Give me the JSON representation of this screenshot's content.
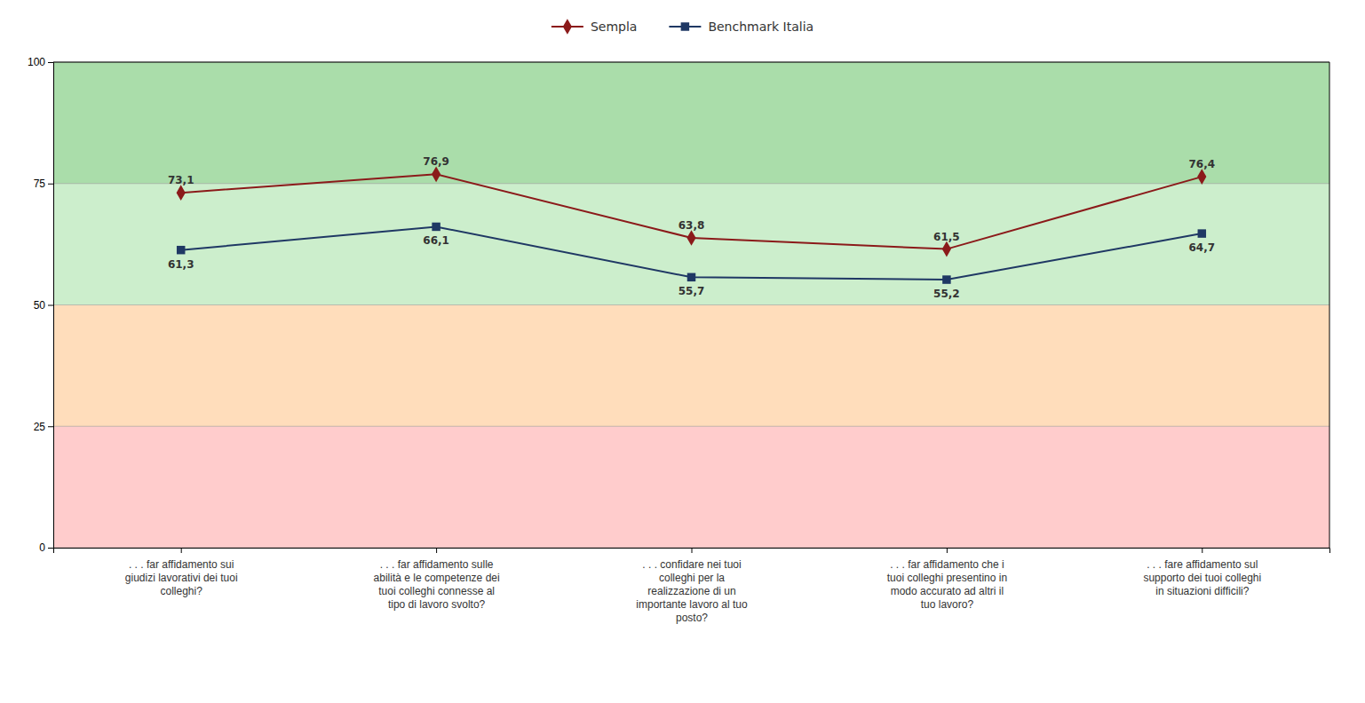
{
  "chart_data": {
    "type": "line",
    "categories": [
      ". . . far affidamento sui\ngiudizi lavorativi dei tuoi\ncolleghi?",
      ". . . far affidamento sulle\nabilità e le competenze dei\ntuoi colleghi connesse al\ntipo di lavoro svolto?",
      ". . . confidare nei tuoi\ncolleghi per la\nrealizzazione di un\nimportante lavoro al tuo\nposto?",
      ". . . far affidamento che i\ntuoi colleghi presentino in\nmodo accurato ad altri il\ntuo lavoro?",
      ". . . fare affidamento sul\nsupporto dei tuoi colleghi\nin situazioni difficili?"
    ],
    "series": [
      {
        "name": "Sempla",
        "color": "#8B1A1A",
        "marker": "diamond",
        "values": [
          73.1,
          76.9,
          63.8,
          61.5,
          76.4
        ],
        "value_labels": [
          "73,1",
          "76,9",
          "63,8",
          "61,5",
          "76,4"
        ]
      },
      {
        "name": "Benchmark Italia",
        "color": "#1F3864",
        "marker": "square",
        "values": [
          61.3,
          66.1,
          55.7,
          55.2,
          64.7
        ],
        "value_labels": [
          "61,3",
          "66,1",
          "55,7",
          "55,2",
          "64,7"
        ]
      }
    ],
    "bands": [
      {
        "from": 0,
        "to": 25,
        "color": "#FFCCCC"
      },
      {
        "from": 25,
        "to": 50,
        "color": "#FFDDBB"
      },
      {
        "from": 50,
        "to": 75,
        "color": "#CCEECC"
      },
      {
        "from": 75,
        "to": 100,
        "color": "#AADDAA"
      }
    ],
    "ylim": [
      0,
      100
    ],
    "yticks": [
      0,
      25,
      50,
      75,
      100
    ],
    "grid": true,
    "legend": "top",
    "data_labels": true
  }
}
